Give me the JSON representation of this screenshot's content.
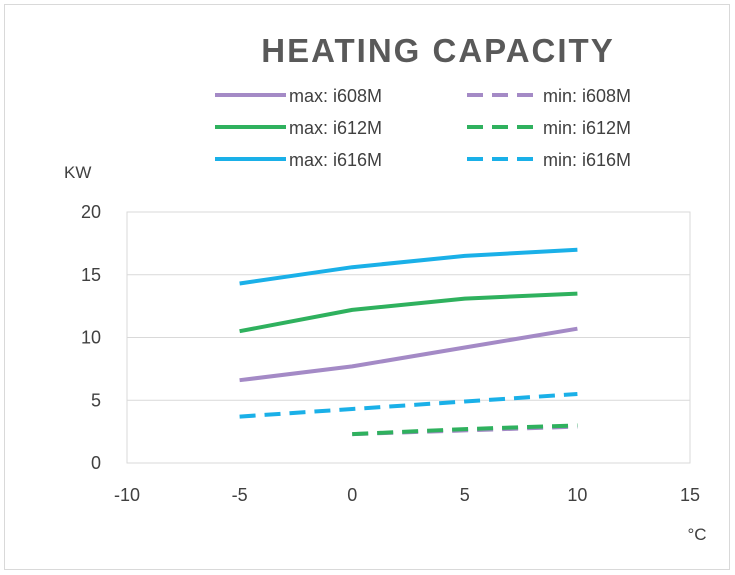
{
  "chart_data": {
    "type": "line",
    "title": "HEATING CAPACITY",
    "xlabel": "°C",
    "ylabel": "KW",
    "xlim": [
      -10,
      15
    ],
    "ylim": [
      0,
      20
    ],
    "xticks": [
      "-10",
      "-5",
      "0",
      "5",
      "10",
      "15"
    ],
    "yticks": [
      "0",
      "5",
      "10",
      "15",
      "20"
    ],
    "grid": "horizontal",
    "legend_position": "top",
    "series": [
      {
        "name": "max: i608M",
        "style": "solid",
        "color": "#a48ac6",
        "x": [
          -5,
          0,
          5,
          10
        ],
        "y": [
          6.6,
          7.7,
          9.2,
          10.7
        ]
      },
      {
        "name": "min: i608M",
        "style": "dashed",
        "color": "#a48ac6",
        "x": [
          0,
          5,
          10
        ],
        "y": [
          2.3,
          2.6,
          2.9
        ]
      },
      {
        "name": "max: i612M",
        "style": "solid",
        "color": "#2fb15e",
        "x": [
          -5,
          0,
          5,
          10
        ],
        "y": [
          10.5,
          12.2,
          13.1,
          13.5
        ]
      },
      {
        "name": "min: i612M",
        "style": "dashed",
        "color": "#2fb15e",
        "x": [
          0,
          5,
          10
        ],
        "y": [
          2.3,
          2.7,
          3.0
        ]
      },
      {
        "name": "max: i616M",
        "style": "solid",
        "color": "#1ab0e8",
        "x": [
          -5,
          0,
          5,
          10
        ],
        "y": [
          14.3,
          15.6,
          16.5,
          17.0
        ]
      },
      {
        "name": "min: i616M",
        "style": "dashed",
        "color": "#1ab0e8",
        "x": [
          -5,
          0,
          5,
          10
        ],
        "y": [
          3.7,
          4.3,
          4.9,
          5.5
        ]
      }
    ]
  }
}
